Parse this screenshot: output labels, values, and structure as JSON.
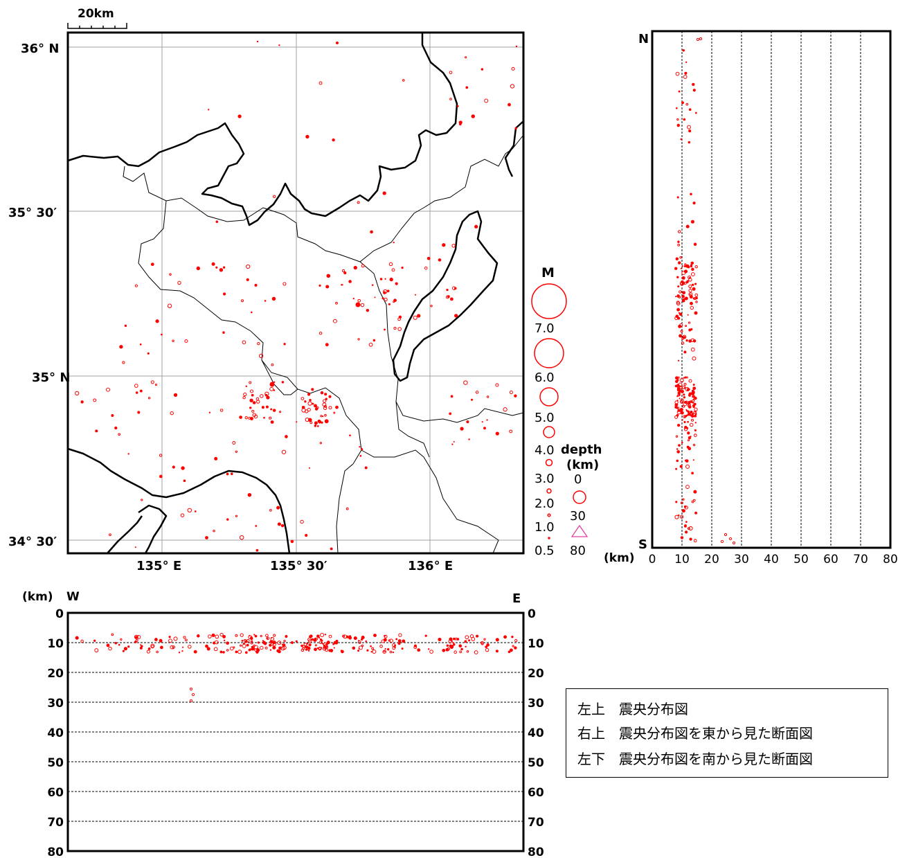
{
  "scale_bar": {
    "label": "20km"
  },
  "map": {
    "lat_labels": [
      "36° N",
      "35° 30′",
      "35° N",
      "34° 30′"
    ],
    "lon_labels": [
      "135° E",
      "135° 30′",
      "136° E"
    ]
  },
  "magnitude_legend": {
    "title": "M",
    "values": [
      "7.0",
      "6.0",
      "5.0",
      "4.0",
      "3.0",
      "2.0",
      "1.0",
      "0.5"
    ]
  },
  "depth_legend": {
    "title": "depth",
    "unit": "(km)",
    "values": [
      "0",
      "30",
      "80"
    ]
  },
  "ns_section": {
    "north_label": "N",
    "south_label": "S",
    "unit": "(km)",
    "depth_ticks": [
      "0",
      "10",
      "20",
      "30",
      "40",
      "50",
      "60",
      "70",
      "80"
    ]
  },
  "ew_section": {
    "unit": "(km)",
    "west_label": "W",
    "east_label": "E",
    "depth_ticks": [
      "0",
      "10",
      "20",
      "30",
      "40",
      "50",
      "60",
      "70",
      "80"
    ]
  },
  "legend_box": {
    "rows": [
      {
        "pos": "左上",
        "text": "震央分布図"
      },
      {
        "pos": "右上",
        "text": "震央分布図を東から見た断面図"
      },
      {
        "pos": "左下",
        "text": "震央分布図を南から見た断面図"
      }
    ]
  },
  "colors": {
    "quake": "#ff0000",
    "deep_quake": "#e040a0",
    "frame": "#000000",
    "grid": "#999999"
  }
}
